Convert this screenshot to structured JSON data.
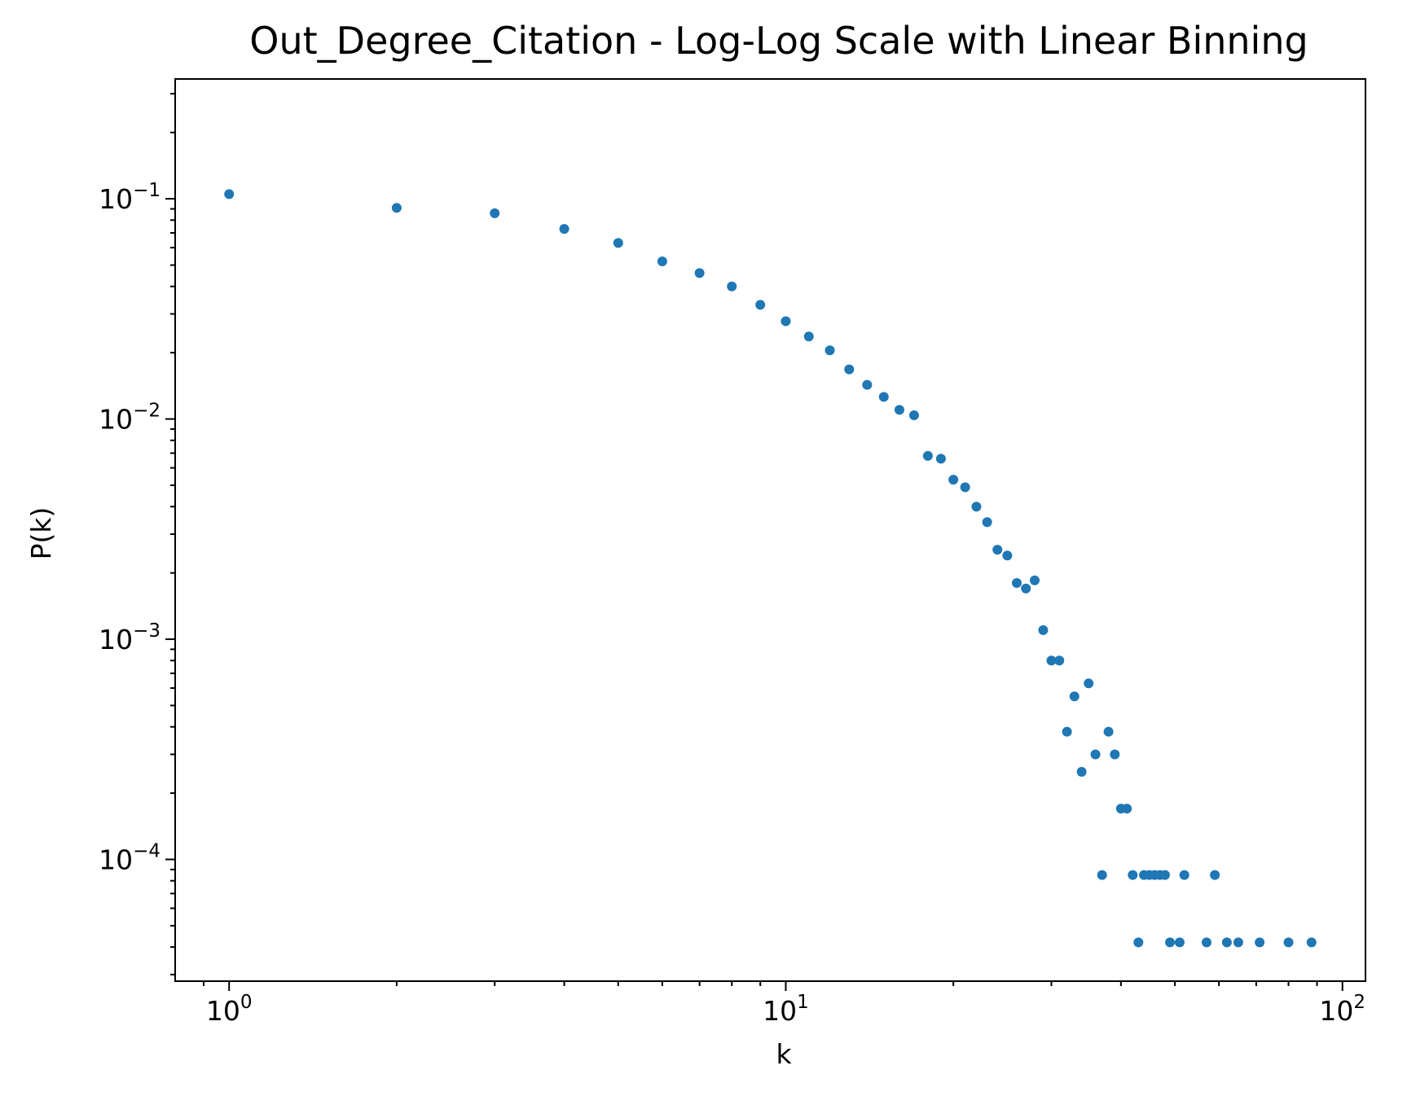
{
  "chart_data": {
    "type": "scatter",
    "title": "Out_Degree_Citation - Log-Log Scale with Linear Binning",
    "xlabel": "k",
    "ylabel": "P(k)",
    "xscale": "log",
    "yscale": "log",
    "xlim": [
      0.8,
      110
    ],
    "ylim": [
      2.8e-05,
      0.35
    ],
    "grid": false,
    "marker_color": "#1f77b4",
    "x_ticks": [
      {
        "value": 1,
        "base": "10",
        "exp": "0"
      },
      {
        "value": 10,
        "base": "10",
        "exp": "1"
      },
      {
        "value": 100,
        "base": "10",
        "exp": "2"
      }
    ],
    "y_ticks": [
      {
        "value": 0.1,
        "base": "10",
        "exp": "−1"
      },
      {
        "value": 0.01,
        "base": "10",
        "exp": "−2"
      },
      {
        "value": 0.001,
        "base": "10",
        "exp": "−3"
      },
      {
        "value": 0.0001,
        "base": "10",
        "exp": "−4"
      }
    ],
    "points": [
      [
        1,
        0.105
      ],
      [
        2,
        0.091
      ],
      [
        3,
        0.086
      ],
      [
        4,
        0.073
      ],
      [
        5,
        0.063
      ],
      [
        6,
        0.052
      ],
      [
        7,
        0.046
      ],
      [
        8,
        0.04
      ],
      [
        9,
        0.033
      ],
      [
        10,
        0.0278
      ],
      [
        11,
        0.0237
      ],
      [
        12,
        0.0205
      ],
      [
        13,
        0.0168
      ],
      [
        14,
        0.0143
      ],
      [
        15,
        0.0126
      ],
      [
        16,
        0.011
      ],
      [
        17,
        0.0104
      ],
      [
        18,
        0.0068
      ],
      [
        19,
        0.0066
      ],
      [
        20,
        0.0053
      ],
      [
        21,
        0.0049
      ],
      [
        22,
        0.004
      ],
      [
        23,
        0.0034
      ],
      [
        24,
        0.00255
      ],
      [
        25,
        0.0024
      ],
      [
        26,
        0.0018
      ],
      [
        27,
        0.0017
      ],
      [
        28,
        0.00185
      ],
      [
        29,
        0.0011
      ],
      [
        30,
        0.0008
      ],
      [
        31,
        0.0008
      ],
      [
        32,
        0.00038
      ],
      [
        33,
        0.00055
      ],
      [
        34,
        0.00025
      ],
      [
        35,
        0.00063
      ],
      [
        36,
        0.0003
      ],
      [
        37,
        8.5e-05
      ],
      [
        38,
        0.00038
      ],
      [
        39,
        0.0003
      ],
      [
        40,
        0.00017
      ],
      [
        41,
        0.00017
      ],
      [
        42,
        8.5e-05
      ],
      [
        43,
        4.2e-05
      ],
      [
        44,
        8.5e-05
      ],
      [
        45,
        8.5e-05
      ],
      [
        46,
        8.5e-05
      ],
      [
        47,
        8.5e-05
      ],
      [
        48,
        8.5e-05
      ],
      [
        49,
        4.2e-05
      ],
      [
        51,
        4.2e-05
      ],
      [
        52,
        8.5e-05
      ],
      [
        57,
        4.2e-05
      ],
      [
        59,
        8.5e-05
      ],
      [
        62,
        4.2e-05
      ],
      [
        65,
        4.2e-05
      ],
      [
        71,
        4.2e-05
      ],
      [
        80,
        4.2e-05
      ],
      [
        88,
        4.2e-05
      ]
    ]
  }
}
